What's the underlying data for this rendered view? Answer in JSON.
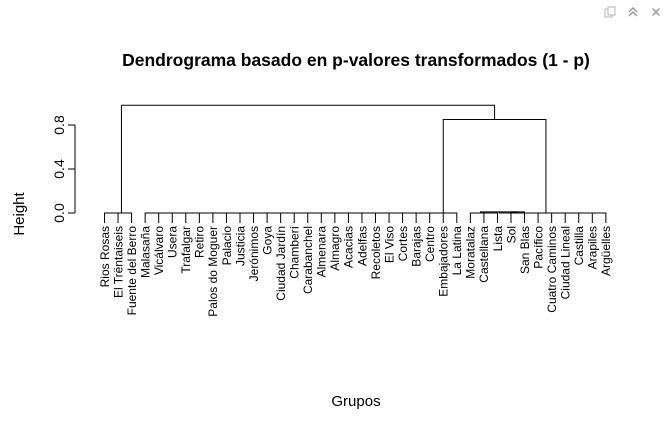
{
  "toolbar": {
    "icons": [
      "copy-icon",
      "collapse-icon",
      "close-icon"
    ]
  },
  "chart_data": {
    "type": "dendrogram",
    "title": "Dendrograma basado en p-valores transformados (1 - p)",
    "xlabel": "Grupos",
    "ylabel": "Height",
    "ylim": [
      0,
      1
    ],
    "yticks": [
      0.0,
      0.4,
      0.8
    ],
    "ytick_labels": [
      "0.0",
      "0.4",
      "0.8"
    ],
    "leaves": [
      "Rios Rosas",
      "El Trëntaiseis",
      "Fuente del Berro",
      "Malasaña",
      "Vicálvaro",
      "Usera",
      "Trafalgar",
      "Retiro",
      "Palos do Moguer",
      "Palacio",
      "Justicia",
      "Jerónimos",
      "Goya",
      "Ciudad Jardín",
      "Chamberí",
      "Carabanchel",
      "Almenara",
      "Almagro",
      "Acacias",
      "Adelfas",
      "Recoletos",
      "El Viso",
      "Cortes",
      "Barajas",
      "Centro",
      "Embajadores",
      "La Latina",
      "Moratalaz",
      "Castellana",
      "Lista",
      "Sol",
      "San Blas",
      "Pacífico",
      "Cuatro Caminos",
      "Ciudad Lineal",
      "Castilla",
      "Arapiles",
      "Argüelles"
    ],
    "merges": [
      {
        "left": "L0",
        "right": "L1",
        "height": 0.0
      },
      {
        "left": "C0",
        "right": "L2",
        "height": 0.0
      },
      {
        "left": "L3",
        "right": "L4",
        "height": 0.0
      },
      {
        "left": "C2",
        "right": "L5",
        "height": 0.0
      },
      {
        "left": "C3",
        "right": "L6",
        "height": 0.0
      },
      {
        "left": "C4",
        "right": "L7",
        "height": 0.0
      },
      {
        "left": "C5",
        "right": "L8",
        "height": 0.0
      },
      {
        "left": "C6",
        "right": "L9",
        "height": 0.0
      },
      {
        "left": "C7",
        "right": "L10",
        "height": 0.0
      },
      {
        "left": "C8",
        "right": "L11",
        "height": 0.0
      },
      {
        "left": "C9",
        "right": "L12",
        "height": 0.0
      },
      {
        "left": "C10",
        "right": "L13",
        "height": 0.0
      },
      {
        "left": "C11",
        "right": "L14",
        "height": 0.0
      },
      {
        "left": "C12",
        "right": "L15",
        "height": 0.0
      },
      {
        "left": "C13",
        "right": "L16",
        "height": 0.0
      },
      {
        "left": "C14",
        "right": "L17",
        "height": 0.0
      },
      {
        "left": "C15",
        "right": "L18",
        "height": 0.0
      },
      {
        "left": "C16",
        "right": "L19",
        "height": 0.0
      },
      {
        "left": "C17",
        "right": "L20",
        "height": 0.0
      },
      {
        "left": "C18",
        "right": "L21",
        "height": 0.0
      },
      {
        "left": "C19",
        "right": "L22",
        "height": 0.0
      },
      {
        "left": "C20",
        "right": "L23",
        "height": 0.0
      },
      {
        "left": "C21",
        "right": "L24",
        "height": 0.0
      },
      {
        "left": "C22",
        "right": "L25",
        "height": 0.0
      },
      {
        "left": "C23",
        "right": "L26",
        "height": 0.0
      },
      {
        "left": "L28",
        "right": "L29",
        "height": 0.0
      },
      {
        "left": "L27",
        "right": "C25",
        "height": 0.0
      },
      {
        "left": "L30",
        "right": "L31",
        "height": 0.01
      },
      {
        "left": "C26",
        "right": "C27",
        "height": 0.01
      },
      {
        "left": "L32",
        "right": "L33",
        "height": 0.0
      },
      {
        "left": "C29",
        "right": "L34",
        "height": 0.0
      },
      {
        "left": "C30",
        "right": "L35",
        "height": 0.0
      },
      {
        "left": "C31",
        "right": "L36",
        "height": 0.0
      },
      {
        "left": "C32",
        "right": "L37",
        "height": 0.0
      },
      {
        "left": "C28",
        "right": "C33",
        "height": 0.0
      },
      {
        "left": "C24",
        "right": "C34",
        "height": 0.85
      },
      {
        "left": "C1",
        "right": "C35",
        "height": 0.98
      }
    ]
  }
}
